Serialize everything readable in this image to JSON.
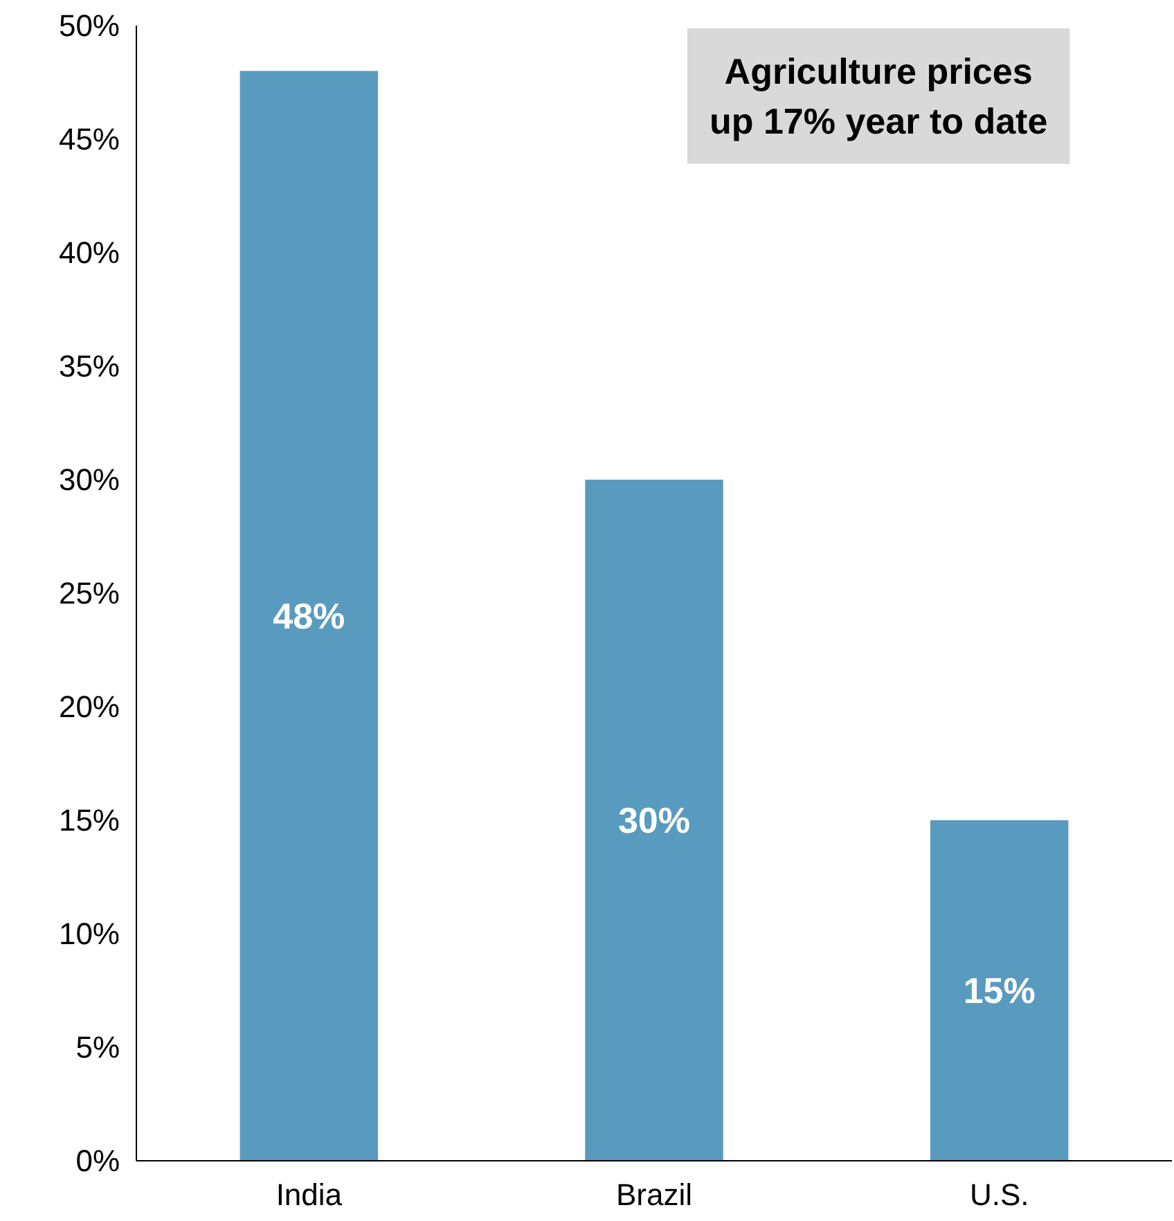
{
  "chart_data": {
    "type": "bar",
    "categories": [
      "India",
      "Brazil",
      "U.S."
    ],
    "values": [
      48,
      30,
      15
    ],
    "value_labels": [
      "48%",
      "30%",
      "15%"
    ],
    "color": "#589bbf",
    "ylim": [
      0,
      50
    ],
    "yticks": [
      {
        "value": 0,
        "label": "0%"
      },
      {
        "value": 5,
        "label": "5%"
      },
      {
        "value": 10,
        "label": "10%"
      },
      {
        "value": 15,
        "label": "15%"
      },
      {
        "value": 20,
        "label": "20%"
      },
      {
        "value": 25,
        "label": "25%"
      },
      {
        "value": 30,
        "label": "30%"
      },
      {
        "value": 35,
        "label": "35%"
      },
      {
        "value": 40,
        "label": "40%"
      },
      {
        "value": 45,
        "label": "45%"
      },
      {
        "value": 50,
        "label": "50%"
      }
    ],
    "annotations": [
      "Agriculture prices\nup 17% year to date"
    ],
    "grid": false
  }
}
